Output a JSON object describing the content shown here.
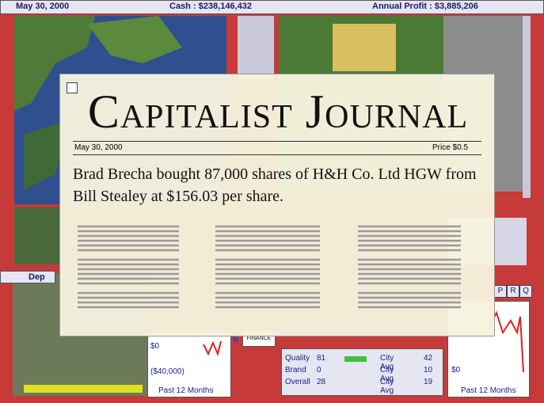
{
  "top_bar": {
    "date": "May 30, 2000",
    "cash": "Cash : $238,146,432",
    "annual_profit": "Annual Profit : $3,885,206"
  },
  "journal": {
    "masthead": "Capitalist Journal",
    "date": "May 30, 2000",
    "price": "Price $0.5",
    "headline": "Brad Brecha bought 87,000 shares of H&H Co. Ltd HGW from Bill Stealey at $156.03 per share."
  },
  "panels": {
    "left_label": "Dep",
    "left_chart": {
      "top_label": "$0",
      "bottom_label": "($40,000)",
      "caption": "Past 12 Months"
    },
    "tab": "6",
    "finance_button": "FINANCE",
    "ratings": {
      "rows": [
        [
          "Quality",
          "81",
          "City Avg",
          "42"
        ],
        [
          "Brand",
          "0",
          "City Avg",
          "10"
        ],
        [
          "Overall",
          "28",
          "City Avg",
          "19"
        ]
      ]
    },
    "right_chart": {
      "label": "$0",
      "caption": "Past 12 Months"
    },
    "buttons": [
      "P",
      "R",
      "Q"
    ]
  }
}
